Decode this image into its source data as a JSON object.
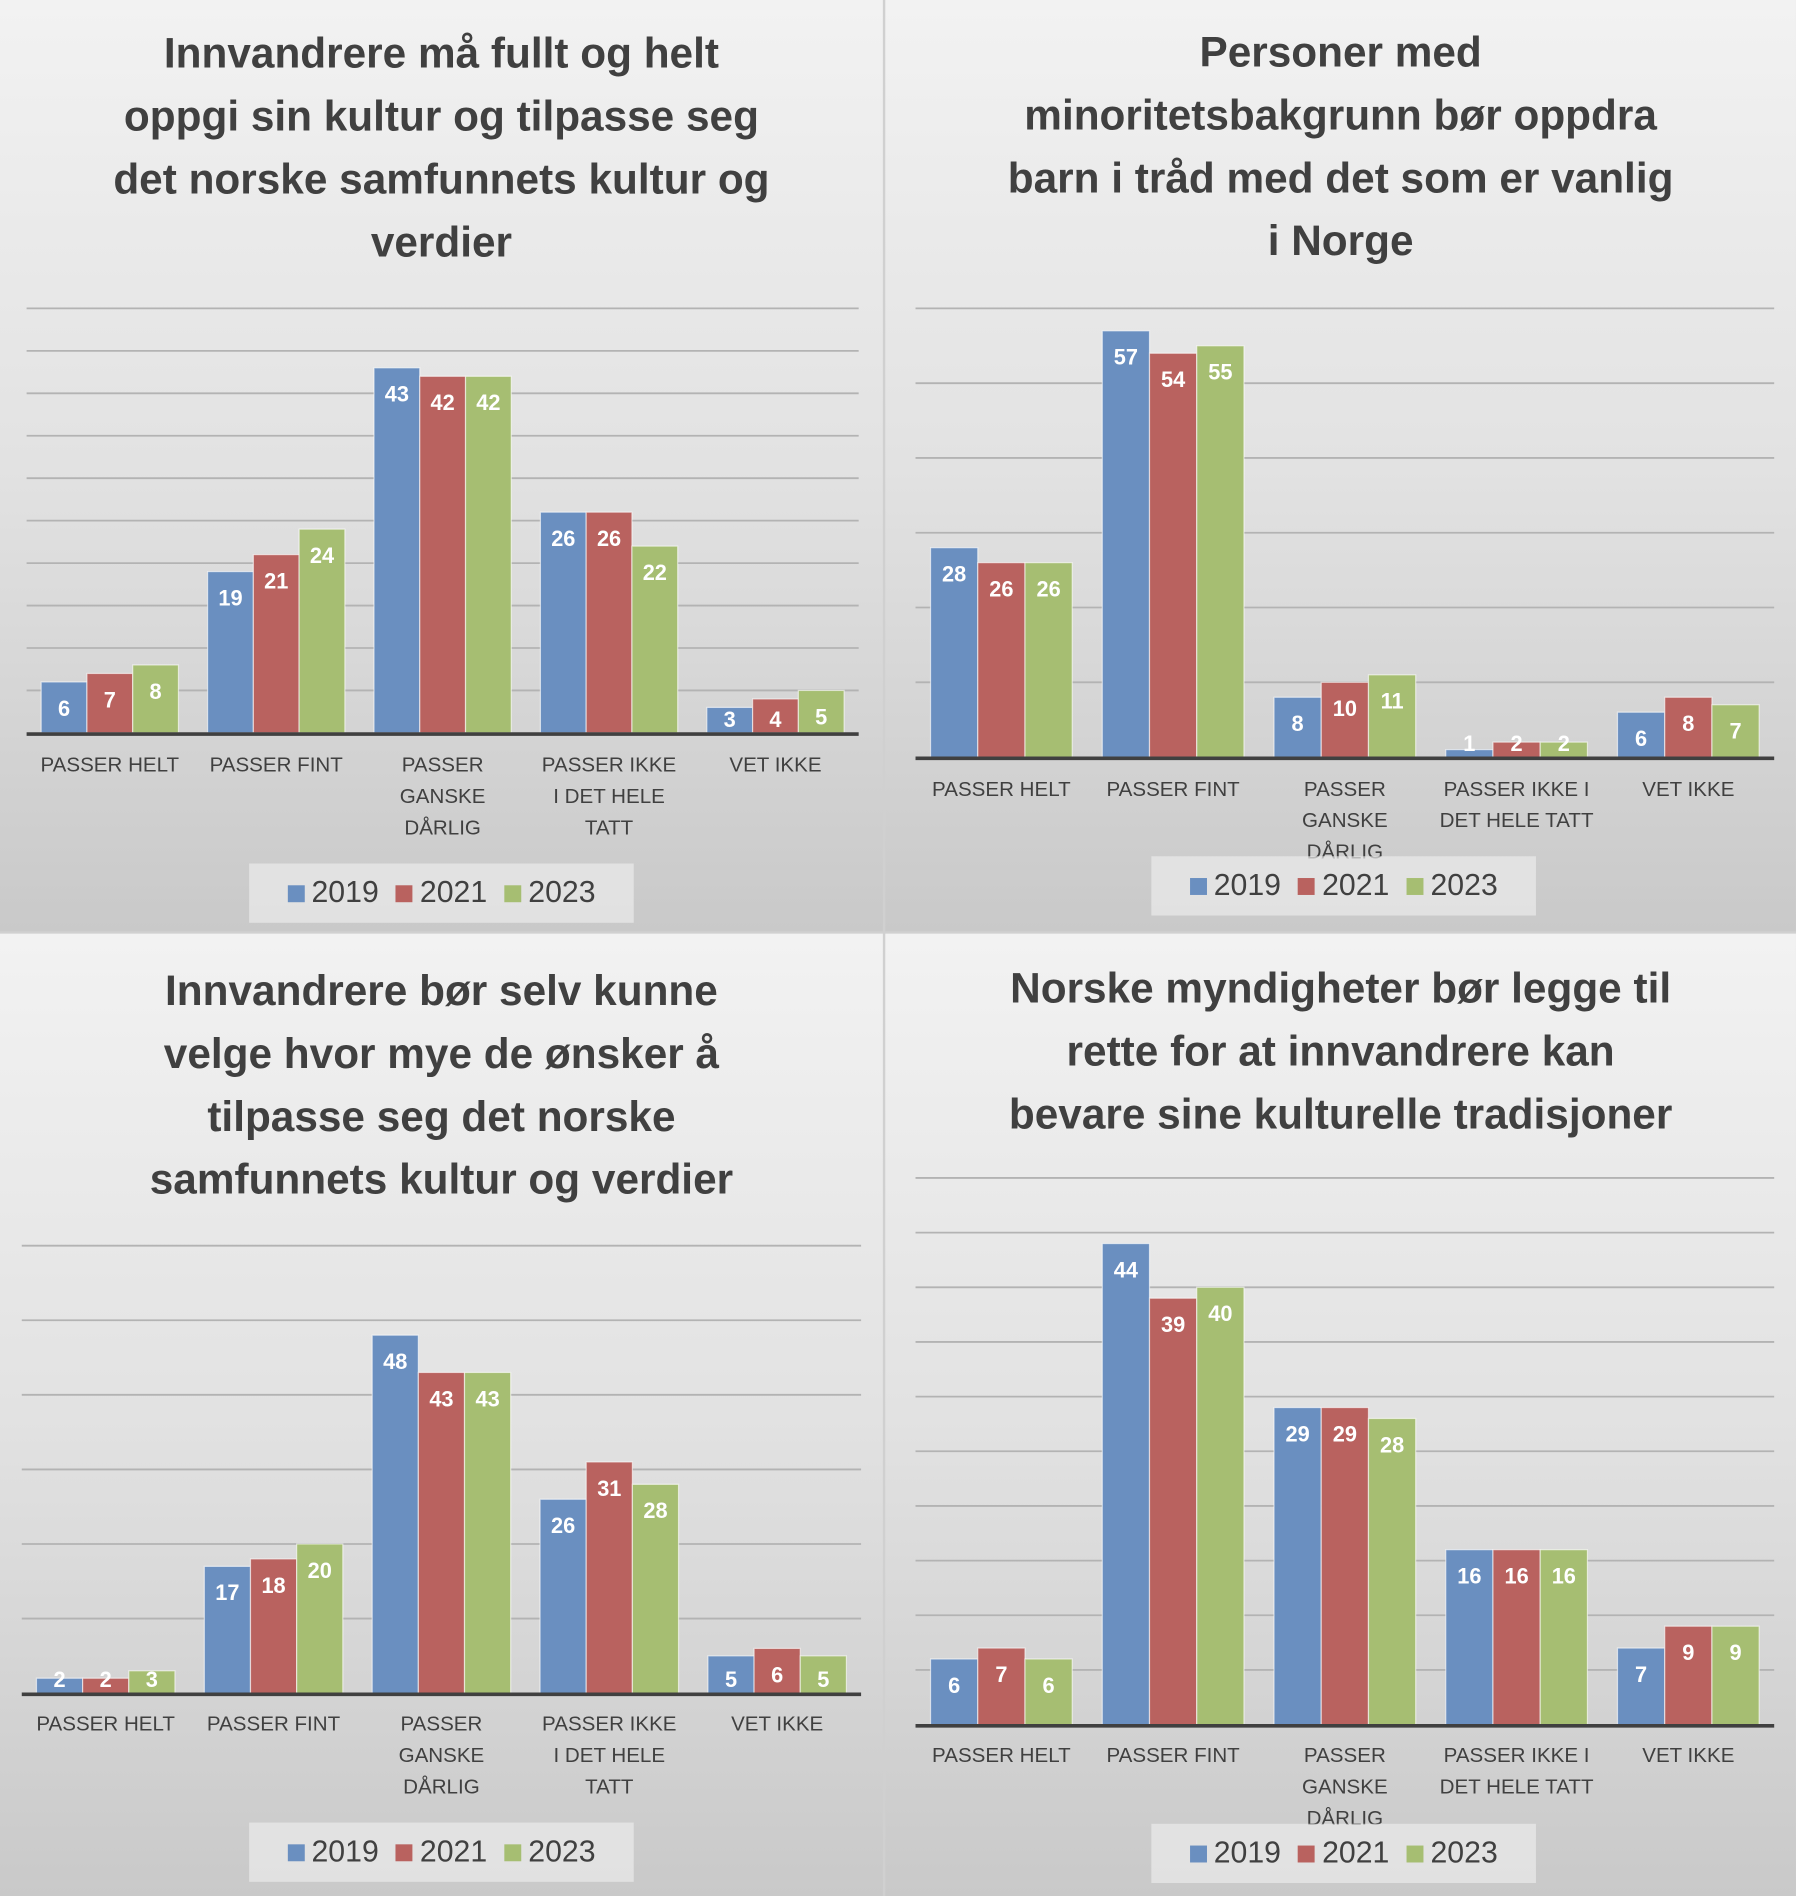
{
  "series_colors": {
    "2019": "#6a8fc0",
    "2021": "#b9625f",
    "2023": "#a6be72"
  },
  "chart_data": [
    {
      "type": "bar",
      "title_lines": [
        "Innvandrere må fullt og helt",
        "oppgi sin kultur og tilpasse seg",
        "det norske samfunnets kultur og",
        "verdier"
      ],
      "categories": [
        "PASSER HELT",
        "PASSER FINT",
        "PASSER GANSKE DÅRLIG",
        "PASSER IKKE I DET HELE TATT",
        "VET IKKE"
      ],
      "series": [
        {
          "name": "2019",
          "values": [
            6,
            19,
            43,
            26,
            3
          ]
        },
        {
          "name": "2021",
          "values": [
            7,
            21,
            42,
            26,
            4
          ]
        },
        {
          "name": "2023",
          "values": [
            8,
            24,
            42,
            22,
            5
          ]
        }
      ],
      "ylim": [
        0,
        50
      ],
      "ystep": 5,
      "grid": true,
      "legend": "bottom",
      "data_labels": true
    },
    {
      "type": "bar",
      "title_lines": [
        "Personer med",
        "minoritetsbakgrunn bør oppdra",
        "barn i tråd med det som er vanlig",
        "i Norge"
      ],
      "categories": [
        "PASSER HELT",
        "PASSER FINT",
        "PASSER GANSKE DÅRLIG",
        "PASSER IKKE I DET HELE TATT",
        "VET IKKE"
      ],
      "series": [
        {
          "name": "2019",
          "values": [
            28,
            57,
            8,
            1,
            6
          ]
        },
        {
          "name": "2021",
          "values": [
            26,
            54,
            10,
            2,
            8
          ]
        },
        {
          "name": "2023",
          "values": [
            26,
            55,
            11,
            2,
            7
          ]
        }
      ],
      "ylim": [
        0,
        60
      ],
      "ystep": 10,
      "grid": true,
      "legend": "bottom",
      "data_labels": true
    },
    {
      "type": "bar",
      "title_lines": [
        "Innvandrere bør selv kunne",
        "velge hvor mye de ønsker å",
        "tilpasse seg det norske",
        "samfunnets kultur og verdier"
      ],
      "categories": [
        "PASSER HELT",
        "PASSER FINT",
        "PASSER GANSKE DÅRLIG",
        "PASSER IKKE I DET HELE TATT",
        "VET IKKE"
      ],
      "series": [
        {
          "name": "2019",
          "values": [
            2,
            17,
            48,
            26,
            5
          ]
        },
        {
          "name": "2021",
          "values": [
            2,
            18,
            43,
            31,
            6
          ]
        },
        {
          "name": "2023",
          "values": [
            3,
            20,
            43,
            28,
            5
          ]
        }
      ],
      "ylim": [
        0,
        60
      ],
      "ystep": 10,
      "grid": true,
      "legend": "bottom",
      "data_labels": true
    },
    {
      "type": "bar",
      "title_lines": [
        "Norske myndigheter bør legge til",
        "rette for at innvandrere kan",
        "bevare sine kulturelle tradisjoner"
      ],
      "categories": [
        "PASSER HELT",
        "PASSER FINT",
        "PASSER GANSKE DÅRLIG",
        "PASSER IKKE I DET HELE TATT",
        "VET IKKE"
      ],
      "series": [
        {
          "name": "2019",
          "values": [
            6,
            44,
            29,
            16,
            7
          ]
        },
        {
          "name": "2021",
          "values": [
            7,
            39,
            29,
            16,
            9
          ]
        },
        {
          "name": "2023",
          "values": [
            6,
            40,
            28,
            16,
            9
          ]
        }
      ],
      "ylim": [
        0,
        50
      ],
      "ystep": 5,
      "grid": true,
      "legend": "bottom",
      "data_labels": true
    }
  ]
}
